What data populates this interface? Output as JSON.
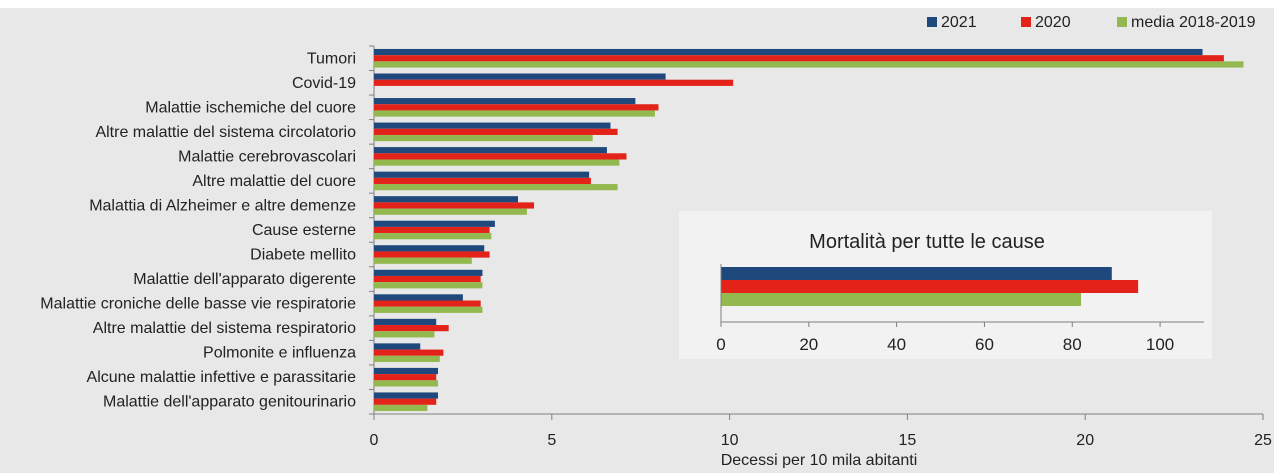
{
  "colors": {
    "background": "#e8e8e8",
    "series_2021": "#1f497d",
    "series_2020": "#e32219",
    "series_media": "#93b84f",
    "inset_background": "#f2f2f2"
  },
  "chart_data": [
    {
      "type": "bar",
      "orientation": "horizontal",
      "categories": [
        "Tumori",
        "Covid-19",
        "Malattie ischemiche del cuore",
        "Altre malattie del sistema circolatorio",
        "Malattie cerebrovascolari",
        "Altre malattie del cuore",
        "Malattia di Alzheimer e altre demenze",
        "Cause esterne",
        "Diabete mellito",
        "Malattie dell'apparato digerente",
        "Malattie croniche delle basse vie respiratorie",
        "Altre malattie del sistema respiratorio",
        "Polmonite e influenza",
        "Alcune malattie infettive e parassitarie",
        "Malattie dell'apparato genitourinario"
      ],
      "series": [
        {
          "name": "2021",
          "values": [
            23.3,
            8.2,
            7.35,
            6.65,
            6.55,
            6.05,
            4.05,
            3.4,
            3.1,
            3.05,
            2.5,
            1.75,
            1.3,
            1.8,
            1.8
          ]
        },
        {
          "name": "2020",
          "values": [
            23.9,
            10.1,
            8.0,
            6.85,
            7.1,
            6.1,
            4.5,
            3.25,
            3.25,
            3.0,
            3.0,
            2.1,
            1.95,
            1.75,
            1.75
          ]
        },
        {
          "name": "media 2018-2019",
          "values": [
            24.45,
            0,
            7.9,
            6.15,
            6.9,
            6.85,
            4.3,
            3.3,
            2.75,
            3.05,
            3.05,
            1.7,
            1.85,
            1.8,
            1.5
          ]
        }
      ],
      "xlabel": "Decessi per 10 mila abitanti",
      "xlim": [
        0,
        25
      ],
      "xticks": [
        "0",
        "5",
        "10",
        "15",
        "20",
        "25"
      ],
      "grid": false,
      "legend_position": "top-right"
    },
    {
      "type": "bar",
      "orientation": "horizontal",
      "title": "Mortalità per tutte le cause",
      "series": [
        {
          "name": "2021",
          "values": [
            89
          ]
        },
        {
          "name": "2020",
          "values": [
            95
          ]
        },
        {
          "name": "media 2018-2019",
          "values": [
            82
          ]
        }
      ],
      "xlim": [
        0,
        110
      ],
      "xticks": [
        "0",
        "20",
        "40",
        "60",
        "80",
        "100"
      ],
      "legend": false
    }
  ]
}
